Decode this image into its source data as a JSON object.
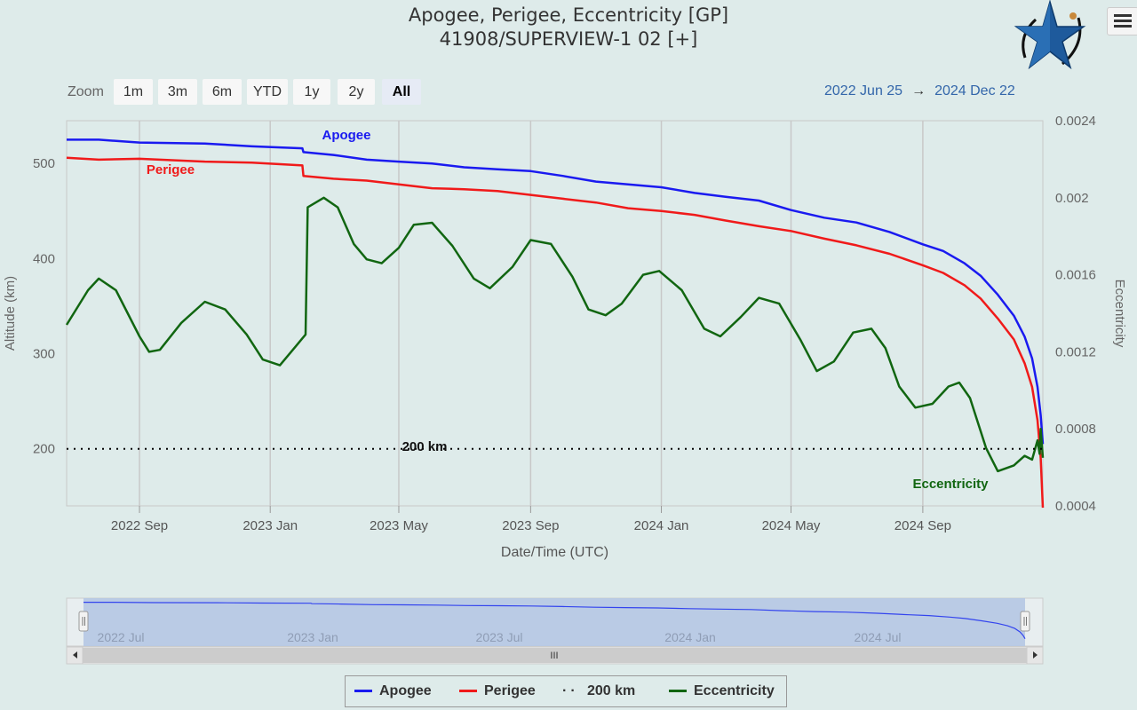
{
  "title": {
    "line1": "Apogee, Perigee, Eccentricity [GP]",
    "line2": "41908/SUPERVIEW-1 02 [+]"
  },
  "zoom": {
    "label": "Zoom",
    "buttons": [
      "1m",
      "3m",
      "6m",
      "YTD",
      "1y",
      "2y",
      "All"
    ],
    "active": "All"
  },
  "range": {
    "from": "2022 Jun 25",
    "arrow": "→",
    "to": "2024 Dec 22"
  },
  "colors": {
    "apogee": "#1a1af0",
    "perigee": "#f01a1a",
    "eccentricity": "#116611",
    "threshold": "#000000",
    "navigator": "#b5c6e3"
  },
  "chart_data": {
    "type": "line",
    "xlabel": "Date/Time (UTC)",
    "ylabel": "Altitude (km)",
    "y2label": "Eccentricity",
    "xlim": [
      "2022-06-25",
      "2024-12-22"
    ],
    "ylim": [
      140,
      545
    ],
    "y2lim": [
      0.0004,
      0.0024
    ],
    "x_ticks": [
      "2022 Sep",
      "2023 Jan",
      "2023 May",
      "2023 Sep",
      "2024 Jan",
      "2024 May",
      "2024 Sep"
    ],
    "y_ticks": [
      200,
      300,
      400,
      500
    ],
    "y2_ticks": [
      "0.0004",
      "0.0008",
      "0.0012",
      "0.0016",
      "0.002",
      "0.0024"
    ],
    "grid": true,
    "annotations": {
      "apogee": "Apogee",
      "perigee": "Perigee",
      "threshold": "200 km",
      "eccentricity": "Eccentricity"
    },
    "series": [
      {
        "name": "Apogee",
        "axis": "left",
        "points": [
          [
            "2022-06-25",
            525
          ],
          [
            "2022-07-25",
            525
          ],
          [
            "2022-09-01",
            522
          ],
          [
            "2022-11-01",
            521
          ],
          [
            "2022-12-15",
            518
          ],
          [
            "2023-01-31",
            516
          ],
          [
            "2023-02-01",
            512
          ],
          [
            "2023-03-01",
            509
          ],
          [
            "2023-04-01",
            504
          ],
          [
            "2023-05-01",
            502
          ],
          [
            "2023-06-01",
            500
          ],
          [
            "2023-07-01",
            496
          ],
          [
            "2023-08-01",
            494
          ],
          [
            "2023-09-01",
            492
          ],
          [
            "2023-10-01",
            487
          ],
          [
            "2023-11-01",
            481
          ],
          [
            "2023-12-01",
            478
          ],
          [
            "2024-01-01",
            475
          ],
          [
            "2024-02-01",
            469
          ],
          [
            "2024-03-01",
            465
          ],
          [
            "2024-04-01",
            461
          ],
          [
            "2024-05-01",
            451
          ],
          [
            "2024-06-01",
            443
          ],
          [
            "2024-07-01",
            438
          ],
          [
            "2024-08-01",
            428
          ],
          [
            "2024-09-01",
            415
          ],
          [
            "2024-09-20",
            408
          ],
          [
            "2024-10-10",
            395
          ],
          [
            "2024-10-25",
            382
          ],
          [
            "2024-11-10",
            362
          ],
          [
            "2024-11-25",
            340
          ],
          [
            "2024-12-05",
            318
          ],
          [
            "2024-12-12",
            295
          ],
          [
            "2024-12-17",
            265
          ],
          [
            "2024-12-20",
            235
          ],
          [
            "2024-12-22",
            205
          ]
        ]
      },
      {
        "name": "Perigee",
        "axis": "left",
        "points": [
          [
            "2022-06-25",
            506
          ],
          [
            "2022-07-25",
            504
          ],
          [
            "2022-09-01",
            505
          ],
          [
            "2022-11-01",
            502
          ],
          [
            "2022-12-15",
            501
          ],
          [
            "2023-01-31",
            498
          ],
          [
            "2023-02-01",
            487
          ],
          [
            "2023-03-01",
            484
          ],
          [
            "2023-04-01",
            482
          ],
          [
            "2023-05-01",
            478
          ],
          [
            "2023-06-01",
            474
          ],
          [
            "2023-07-01",
            473
          ],
          [
            "2023-08-01",
            471
          ],
          [
            "2023-09-01",
            467
          ],
          [
            "2023-10-01",
            463
          ],
          [
            "2023-11-01",
            459
          ],
          [
            "2023-12-01",
            453
          ],
          [
            "2024-01-01",
            450
          ],
          [
            "2024-02-01",
            446
          ],
          [
            "2024-03-01",
            440
          ],
          [
            "2024-04-01",
            434
          ],
          [
            "2024-05-01",
            429
          ],
          [
            "2024-06-01",
            421
          ],
          [
            "2024-07-01",
            414
          ],
          [
            "2024-08-01",
            405
          ],
          [
            "2024-09-01",
            393
          ],
          [
            "2024-09-20",
            385
          ],
          [
            "2024-10-10",
            372
          ],
          [
            "2024-10-25",
            358
          ],
          [
            "2024-11-10",
            337
          ],
          [
            "2024-11-25",
            315
          ],
          [
            "2024-12-05",
            290
          ],
          [
            "2024-12-12",
            265
          ],
          [
            "2024-12-17",
            230
          ],
          [
            "2024-12-20",
            190
          ],
          [
            "2024-12-22",
            138
          ]
        ]
      },
      {
        "name": "Eccentricity",
        "axis": "right",
        "points": [
          [
            "2022-06-25",
            0.00134
          ],
          [
            "2022-07-15",
            0.00152
          ],
          [
            "2022-07-25",
            0.00158
          ],
          [
            "2022-08-10",
            0.00152
          ],
          [
            "2022-09-01",
            0.00128
          ],
          [
            "2022-09-10",
            0.0012
          ],
          [
            "2022-09-20",
            0.00121
          ],
          [
            "2022-10-10",
            0.00135
          ],
          [
            "2022-11-01",
            0.00146
          ],
          [
            "2022-11-20",
            0.00142
          ],
          [
            "2022-12-10",
            0.00129
          ],
          [
            "2022-12-25",
            0.00116
          ],
          [
            "2023-01-10",
            0.00113
          ],
          [
            "2023-01-25",
            0.00123
          ],
          [
            "2023-02-03",
            0.00129
          ],
          [
            "2023-02-05",
            0.00195
          ],
          [
            "2023-02-20",
            0.002
          ],
          [
            "2023-03-05",
            0.00195
          ],
          [
            "2023-03-20",
            0.00176
          ],
          [
            "2023-04-01",
            0.00168
          ],
          [
            "2023-04-15",
            0.00166
          ],
          [
            "2023-05-01",
            0.00174
          ],
          [
            "2023-05-15",
            0.00186
          ],
          [
            "2023-06-01",
            0.00187
          ],
          [
            "2023-06-20",
            0.00175
          ],
          [
            "2023-07-10",
            0.00158
          ],
          [
            "2023-07-25",
            0.00153
          ],
          [
            "2023-08-15",
            0.00164
          ],
          [
            "2023-09-01",
            0.00178
          ],
          [
            "2023-09-20",
            0.00176
          ],
          [
            "2023-10-10",
            0.00159
          ],
          [
            "2023-10-25",
            0.00142
          ],
          [
            "2023-11-10",
            0.00139
          ],
          [
            "2023-11-25",
            0.00145
          ],
          [
            "2023-12-15",
            0.0016
          ],
          [
            "2023-12-30",
            0.00162
          ],
          [
            "2024-01-20",
            0.00152
          ],
          [
            "2024-02-10",
            0.00132
          ],
          [
            "2024-02-25",
            0.00128
          ],
          [
            "2024-03-15",
            0.00138
          ],
          [
            "2024-04-01",
            0.00148
          ],
          [
            "2024-04-20",
            0.00145
          ],
          [
            "2024-05-10",
            0.00126
          ],
          [
            "2024-05-25",
            0.0011
          ],
          [
            "2024-06-10",
            0.00115
          ],
          [
            "2024-06-28",
            0.0013
          ],
          [
            "2024-07-15",
            0.00132
          ],
          [
            "2024-07-28",
            0.00122
          ],
          [
            "2024-08-10",
            0.00102
          ],
          [
            "2024-08-25",
            0.00091
          ],
          [
            "2024-09-10",
            0.00093
          ],
          [
            "2024-09-25",
            0.00102
          ],
          [
            "2024-10-05",
            0.00104
          ],
          [
            "2024-10-15",
            0.00096
          ],
          [
            "2024-10-30",
            0.0007
          ],
          [
            "2024-11-10",
            0.00058
          ],
          [
            "2024-11-25",
            0.00061
          ],
          [
            "2024-12-05",
            0.00066
          ],
          [
            "2024-12-12",
            0.00064
          ],
          [
            "2024-12-17",
            0.00074
          ],
          [
            "2024-12-19",
            0.00067
          ],
          [
            "2024-12-20",
            0.0008
          ],
          [
            "2024-12-22",
            0.00065
          ]
        ]
      },
      {
        "name": "200 km",
        "axis": "left",
        "points": [
          [
            "2022-06-25",
            200
          ],
          [
            "2024-12-22",
            200
          ]
        ]
      }
    ]
  },
  "navigator": {
    "labels": [
      "2022 Jul",
      "2023 Jan",
      "2023 Jul",
      "2024 Jan",
      "2024 Jul"
    ],
    "scroll_grip": "III"
  },
  "legend": [
    "Apogee",
    "Perigee",
    "200 km",
    "Eccentricity"
  ]
}
